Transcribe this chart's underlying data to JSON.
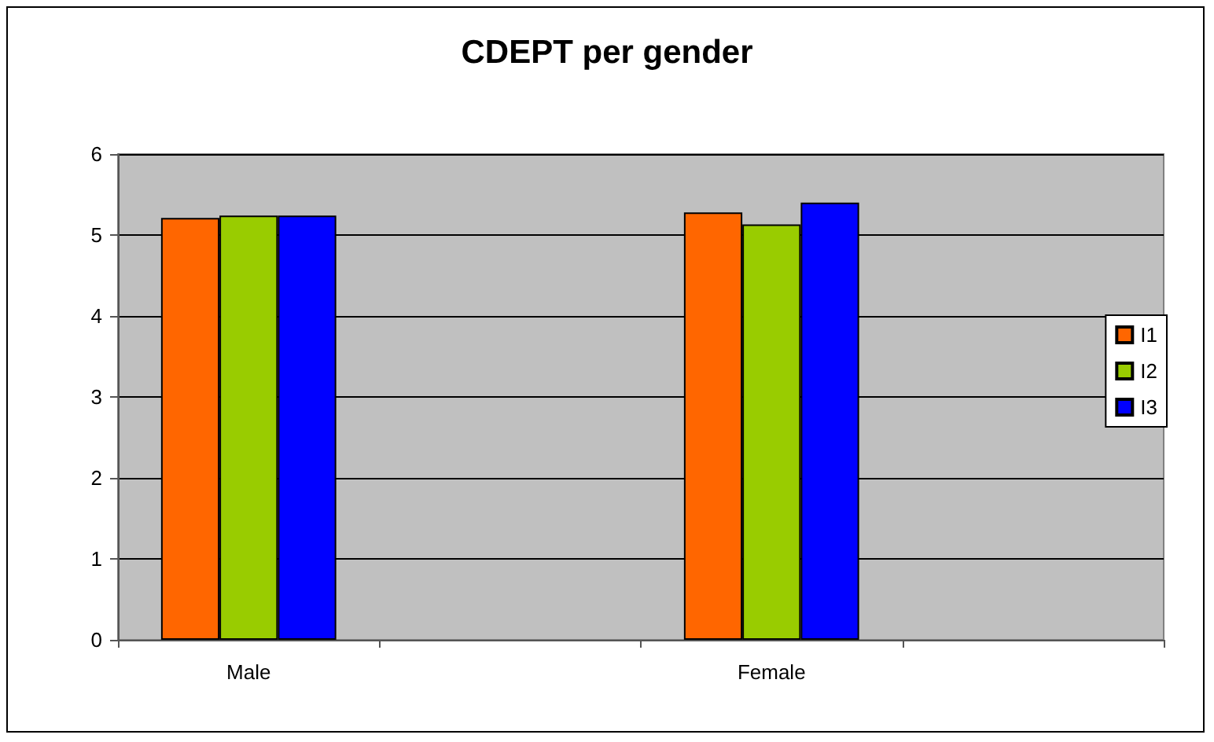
{
  "chart_data": {
    "type": "bar",
    "title": "CDEPT per gender",
    "categories": [
      "Male",
      null,
      "Female",
      null
    ],
    "series": [
      {
        "name": "I1",
        "color": "#ff6600",
        "values": [
          5.21,
          null,
          5.28,
          null
        ]
      },
      {
        "name": "I2",
        "color": "#99cc00",
        "values": [
          5.24,
          null,
          5.13,
          null
        ]
      },
      {
        "name": "I3",
        "color": "#0000ff",
        "values": [
          5.24,
          null,
          5.4,
          null
        ]
      }
    ],
    "ylim": [
      0,
      6
    ],
    "yticks": [
      0,
      1,
      2,
      3,
      4,
      5,
      6
    ],
    "grid": "y",
    "legend": "right"
  }
}
